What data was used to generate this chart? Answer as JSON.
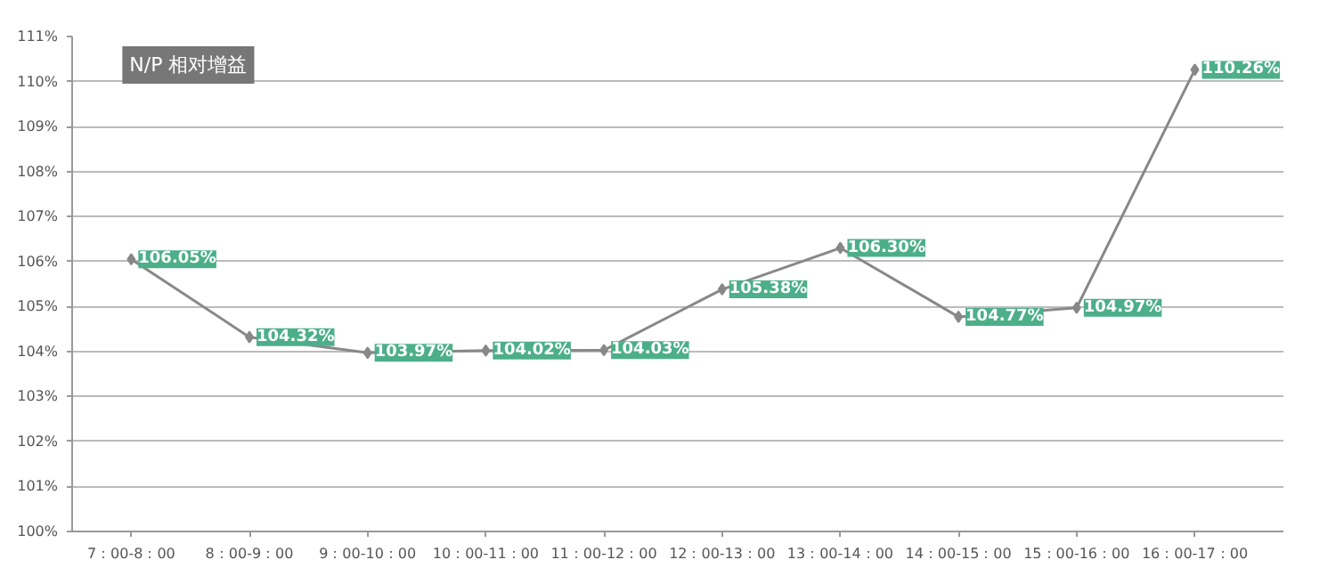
{
  "chart_data": {
    "type": "line",
    "title": "N/P 相对增益",
    "categories": [
      "7：00-8：00",
      "8：00-9：00",
      "9：00-10：00",
      "10：00-11：00",
      "11：00-12：00",
      "12：00-13：00",
      "13：00-14：00",
      "14：00-15：00",
      "15：00-16：00",
      "16：00-17：00"
    ],
    "series": [
      {
        "color": "#888888",
        "values": [
          106.05,
          104.32,
          103.97,
          104.02,
          104.03,
          105.38,
          106.3,
          104.77,
          104.97,
          110.26
        ],
        "value_labels": [
          "106.05%",
          "104.32%",
          "103.97%",
          "104.02%",
          "104.03%",
          "105.38%",
          "106.30%",
          "104.77%",
          "104.97%",
          "110.26%"
        ]
      }
    ],
    "ylim": [
      100,
      111
    ],
    "yticks": [
      {
        "value": 100,
        "label": "100%"
      },
      {
        "value": 101,
        "label": "101%"
      },
      {
        "value": 102,
        "label": "102%"
      },
      {
        "value": 103,
        "label": "103%"
      },
      {
        "value": 104,
        "label": "104%"
      },
      {
        "value": 105,
        "label": "105%"
      },
      {
        "value": 106,
        "label": "106%"
      },
      {
        "value": 107,
        "label": "107%"
      },
      {
        "value": 108,
        "label": "108%"
      },
      {
        "value": 109,
        "label": "109%"
      },
      {
        "value": 110,
        "label": "110%"
      },
      {
        "value": 111,
        "label": "111%"
      }
    ],
    "grid": "y",
    "marker": "diamond",
    "line_style": "solid"
  }
}
